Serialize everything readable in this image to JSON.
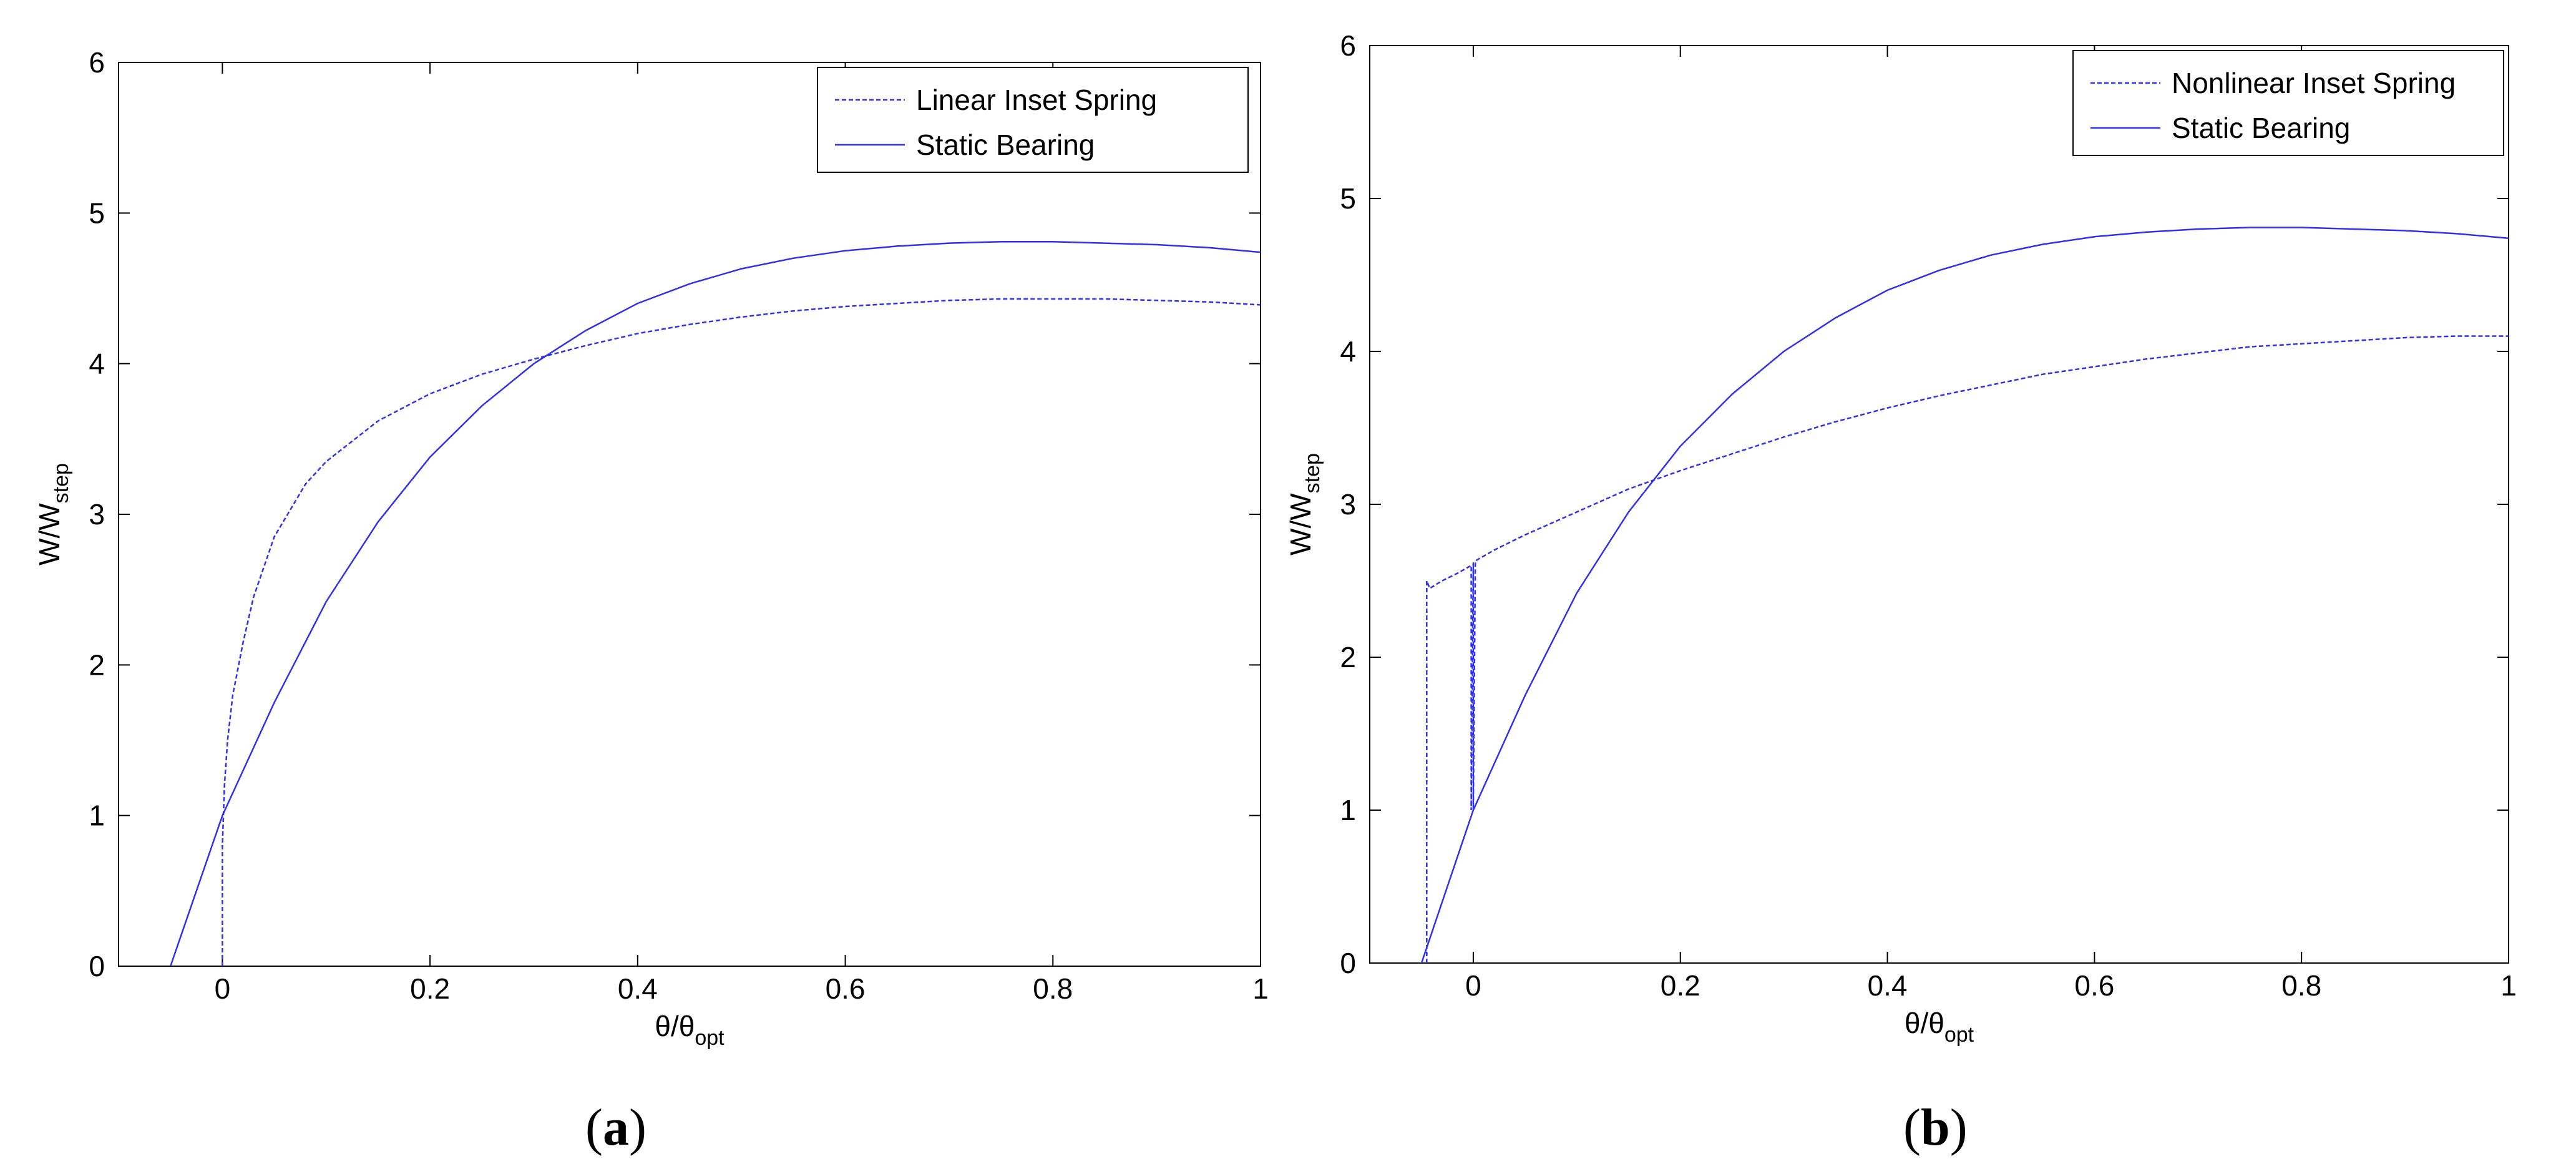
{
  "colors": {
    "series": "#2f2ff0",
    "axis": "#000000"
  },
  "captions": {
    "a": {
      "open": "(",
      "letter": "a",
      "close": ")"
    },
    "b": {
      "open": "(",
      "letter": "b",
      "close": ")"
    }
  },
  "chart_data": [
    {
      "id": "a",
      "type": "line",
      "title": "",
      "xlabel": {
        "main": "θ/θ",
        "sub": "opt"
      },
      "ylabel": {
        "main": "W/W",
        "sub": "step"
      },
      "xlim": [
        -0.1,
        1
      ],
      "ylim": [
        0,
        6
      ],
      "xticks": [
        0,
        0.2,
        0.4,
        0.6,
        0.8,
        1
      ],
      "xtick_labels": [
        "0",
        "0.2",
        "0.4",
        "0.6",
        "0.8",
        "1"
      ],
      "yticks": [
        0,
        1,
        2,
        3,
        4,
        5,
        6
      ],
      "ytick_labels": [
        "0",
        "1",
        "2",
        "3",
        "4",
        "5",
        "6"
      ],
      "grid": false,
      "legend_position": "top-right",
      "series": [
        {
          "name": "Linear Inset Spring",
          "style": "dashed",
          "x": [
            0,
            0,
            0.002,
            0.005,
            0.01,
            0.02,
            0.03,
            0.05,
            0.08,
            0.1,
            0.15,
            0.2,
            0.25,
            0.3,
            0.35,
            0.4,
            0.45,
            0.5,
            0.55,
            0.6,
            0.65,
            0.7,
            0.75,
            0.8,
            0.85,
            0.9,
            0.95,
            1.0
          ],
          "y": [
            0,
            0.8,
            1.2,
            1.5,
            1.8,
            2.15,
            2.45,
            2.85,
            3.2,
            3.35,
            3.62,
            3.8,
            3.93,
            4.03,
            4.12,
            4.2,
            4.26,
            4.31,
            4.35,
            4.38,
            4.4,
            4.42,
            4.43,
            4.43,
            4.43,
            4.42,
            4.41,
            4.39
          ]
        },
        {
          "name": "Static Bearing",
          "style": "solid",
          "x": [
            -0.05,
            -0.025,
            0,
            0.05,
            0.1,
            0.15,
            0.2,
            0.25,
            0.3,
            0.35,
            0.4,
            0.45,
            0.5,
            0.55,
            0.6,
            0.65,
            0.7,
            0.75,
            0.8,
            0.85,
            0.9,
            0.95,
            1.0
          ],
          "y": [
            0,
            0.5,
            1.0,
            1.75,
            2.42,
            2.95,
            3.38,
            3.72,
            4.0,
            4.22,
            4.4,
            4.53,
            4.63,
            4.7,
            4.75,
            4.78,
            4.8,
            4.81,
            4.81,
            4.8,
            4.79,
            4.77,
            4.74
          ]
        }
      ]
    },
    {
      "id": "b",
      "type": "line",
      "title": "",
      "xlabel": {
        "main": "θ/θ",
        "sub": "opt"
      },
      "ylabel": {
        "main": "W/W",
        "sub": "step"
      },
      "xlim": [
        -0.1,
        1
      ],
      "ylim": [
        0,
        6
      ],
      "xticks": [
        0,
        0.2,
        0.4,
        0.6,
        0.8,
        1
      ],
      "xtick_labels": [
        "0",
        "0.2",
        "0.4",
        "0.6",
        "0.8",
        "1"
      ],
      "yticks": [
        0,
        1,
        2,
        3,
        4,
        5,
        6
      ],
      "ytick_labels": [
        "0",
        "1",
        "2",
        "3",
        "4",
        "5",
        "6"
      ],
      "grid": false,
      "legend_position": "top-right",
      "series": [
        {
          "name": "Nonlinear Inset Spring",
          "style": "dashed",
          "x": [
            -0.045,
            -0.045,
            -0.042,
            -0.03,
            -0.015,
            -0.002,
            -0.002,
            0.0,
            0.0,
            0.002,
            0.02,
            0.05,
            0.1,
            0.15,
            0.2,
            0.25,
            0.3,
            0.35,
            0.4,
            0.45,
            0.5,
            0.55,
            0.6,
            0.65,
            0.7,
            0.75,
            0.8,
            0.85,
            0.9,
            0.95,
            1.0
          ],
          "y": [
            0,
            2.5,
            2.45,
            2.5,
            2.55,
            2.6,
            1.0,
            2.62,
            1.0,
            2.63,
            2.7,
            2.8,
            2.95,
            3.1,
            3.22,
            3.33,
            3.44,
            3.54,
            3.63,
            3.71,
            3.78,
            3.85,
            3.9,
            3.95,
            3.99,
            4.03,
            4.05,
            4.07,
            4.09,
            4.1,
            4.1
          ]
        },
        {
          "name": "Static Bearing",
          "style": "solid",
          "x": [
            -0.05,
            -0.025,
            0,
            0.05,
            0.1,
            0.15,
            0.2,
            0.25,
            0.3,
            0.35,
            0.4,
            0.45,
            0.5,
            0.55,
            0.6,
            0.65,
            0.7,
            0.75,
            0.8,
            0.85,
            0.9,
            0.95,
            1.0
          ],
          "y": [
            0,
            0.5,
            1.0,
            1.75,
            2.42,
            2.95,
            3.38,
            3.72,
            4.0,
            4.22,
            4.4,
            4.53,
            4.63,
            4.7,
            4.75,
            4.78,
            4.8,
            4.81,
            4.81,
            4.8,
            4.79,
            4.77,
            4.74
          ]
        }
      ]
    }
  ]
}
